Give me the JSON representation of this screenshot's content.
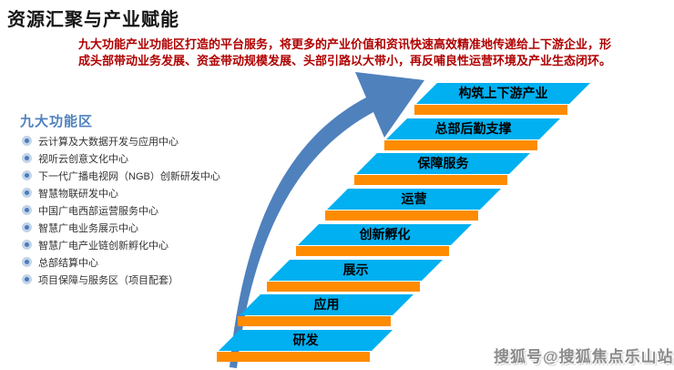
{
  "page": {
    "title": "资源汇聚与产业赋能",
    "watermark": "搜狐号@搜狐焦点乐山站"
  },
  "description": {
    "lines": [
      "九大功能产业功能区打造的平台服务，将更多的产业价值和资讯快速高效精准地传递给上下游企业，形",
      "成头部带动业务发展、资金带动规模发展、头部引路以大带小，再反哺良性运营环境及产业生态闭环。"
    ]
  },
  "sidebar": {
    "heading": "九大功能区",
    "items": [
      "云计算及大数据开发与应用中心",
      "视听云创意文化中心",
      "下一代广播电视网（NGB）创新研发中心",
      "智慧物联研发中心",
      "中国广电西部运营服务中心",
      "智慧广电业务展示中心",
      "智慧广电产业链创新孵化中心",
      "总部结算中心",
      "项目保障与服务区（项目配套）"
    ]
  },
  "staircase": {
    "type": "stair-diagram",
    "direction": "bottom-left to top-right ascending",
    "steps_bottom_to_top": [
      "研发",
      "应用",
      "展示",
      "创新孵化",
      "运营",
      "保障服务",
      "总部后勤支撑",
      "构筑上下游产业"
    ],
    "arrow_meaning": "growth / value transfer upward along the steps"
  },
  "colors": {
    "accent_red": "#b00000",
    "heading_blue": "#4f81bd",
    "step_fill": "#00b0f0",
    "step_riser": "#ff8c00",
    "arrow_fill": "#4f81bd",
    "watermark_gray": "#8c8c8c"
  }
}
